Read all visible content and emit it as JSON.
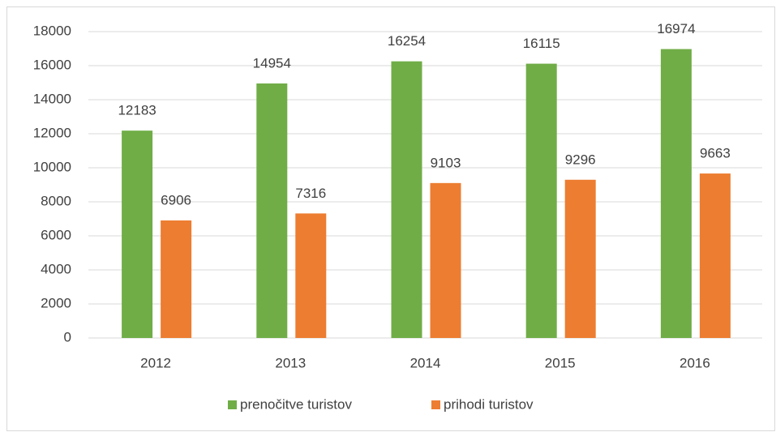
{
  "chart_data": {
    "type": "bar",
    "categories": [
      "2012",
      "2013",
      "2014",
      "2015",
      "2016"
    ],
    "series": [
      {
        "name": "prenočitve turistov",
        "color": "#70ad47",
        "values": [
          12183,
          14954,
          16254,
          16115,
          16974
        ]
      },
      {
        "name": "prihodi turistov",
        "color": "#ed7d31",
        "values": [
          6906,
          7316,
          9103,
          9296,
          9663
        ]
      }
    ],
    "ylim": [
      0,
      18000
    ],
    "yticks": [
      0,
      2000,
      4000,
      6000,
      8000,
      10000,
      12000,
      14000,
      16000,
      18000
    ],
    "grid": true,
    "legend": "bottom"
  }
}
